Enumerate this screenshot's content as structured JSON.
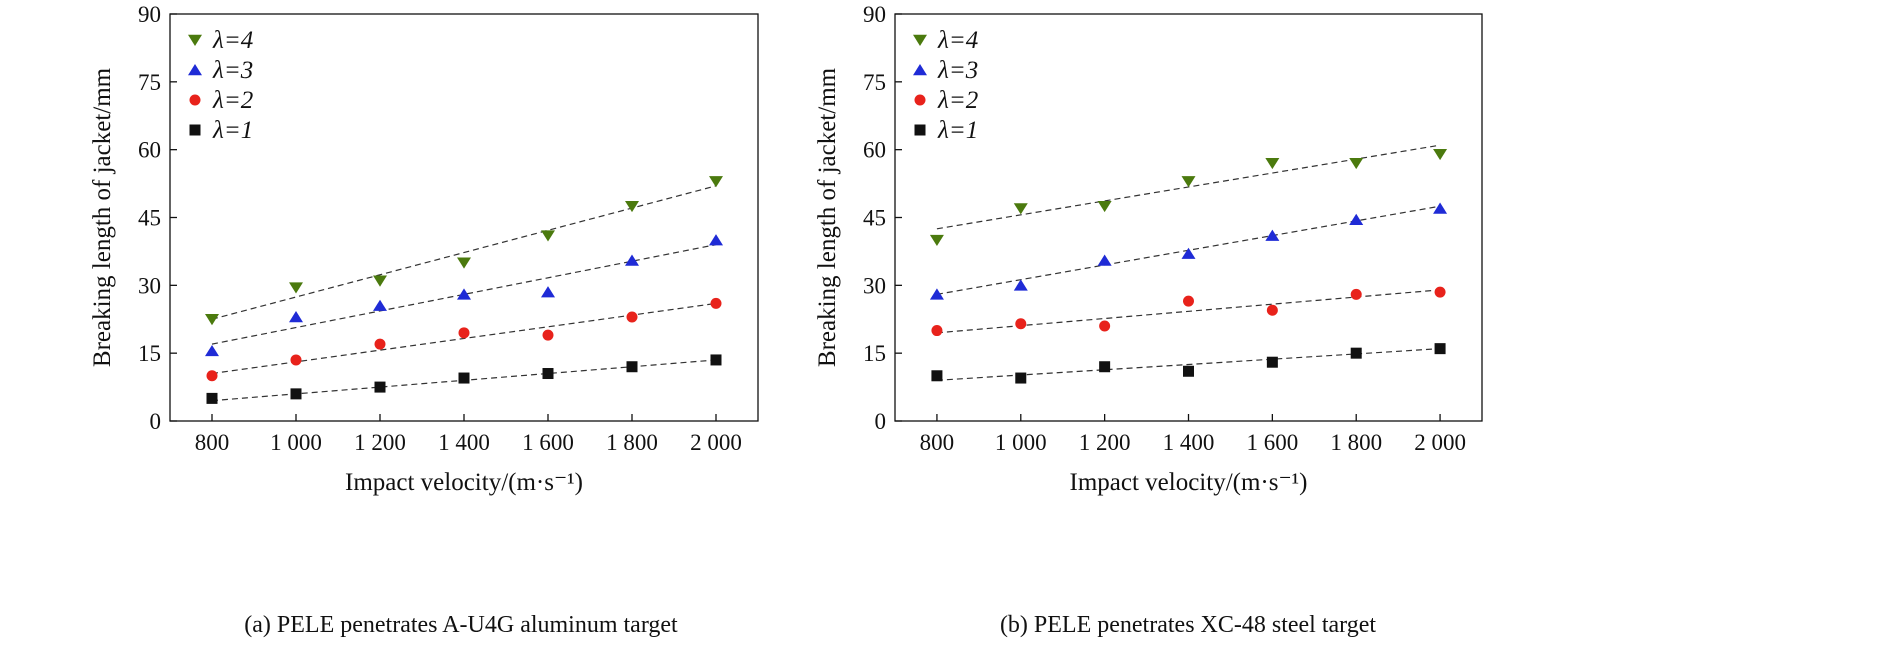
{
  "figure": {
    "panels": [
      {
        "caption": "(a) PELE penetrates A-U4G aluminum target"
      },
      {
        "caption": "(b) PELE penetrates XC-48 steel target"
      }
    ]
  },
  "colors": {
    "λ=4": "#4b7a0e",
    "λ=3": "#1f2bd6",
    "λ=2": "#e8221b",
    "λ=1": "#111111",
    "trendline": "#333333"
  },
  "chart_data": [
    {
      "type": "scatter",
      "caption": "(a) PELE penetrates A-U4G aluminum target",
      "xlabel": "Impact velocity/(m·s⁻¹)",
      "ylabel": "Breaking length of jacket/mm",
      "x_ticks": [
        "800",
        "1 000",
        "1 200",
        "1 400",
        "1 600",
        "1 800",
        "2 000"
      ],
      "y_ticks": [
        "0",
        "15",
        "30",
        "45",
        "60",
        "75",
        "90"
      ],
      "xlim": [
        700,
        2100
      ],
      "ylim": [
        0,
        90
      ],
      "x": [
        800,
        1000,
        1200,
        1400,
        1600,
        1800,
        2000
      ],
      "legend_position": "top-left",
      "trendlines": "linear, dashed",
      "series": [
        {
          "name": "λ=4",
          "marker": "triangle-down",
          "values": [
            22.5,
            29.5,
            31,
            35,
            41,
            47.5,
            53
          ],
          "fit": [
            22.5,
            52
          ]
        },
        {
          "name": "λ=3",
          "marker": "triangle-up",
          "values": [
            15.5,
            23,
            25.5,
            28,
            28.5,
            35.5,
            40
          ],
          "fit": [
            17,
            39
          ]
        },
        {
          "name": "λ=2",
          "marker": "circle",
          "values": [
            10,
            13.5,
            17,
            19.5,
            19,
            23,
            26
          ],
          "fit": [
            10.5,
            26
          ]
        },
        {
          "name": "λ=1",
          "marker": "square",
          "values": [
            5,
            6,
            7.5,
            9.5,
            10.5,
            12,
            13.5
          ],
          "fit": [
            4.5,
            13.5
          ]
        }
      ]
    },
    {
      "type": "scatter",
      "caption": "(b) PELE penetrates XC-48 steel target",
      "xlabel": "Impact velocity/(m·s⁻¹)",
      "ylabel": "Breaking length of jacket/mm",
      "x_ticks": [
        "800",
        "1 000",
        "1 200",
        "1 400",
        "1 600",
        "1 800",
        "2 000"
      ],
      "y_ticks": [
        "0",
        "15",
        "30",
        "45",
        "60",
        "75",
        "90"
      ],
      "xlim": [
        700,
        2100
      ],
      "ylim": [
        0,
        90
      ],
      "x": [
        800,
        1000,
        1200,
        1400,
        1600,
        1800,
        2000
      ],
      "legend_position": "top-left",
      "trendlines": "linear, dashed",
      "series": [
        {
          "name": "λ=4",
          "marker": "triangle-down",
          "values": [
            40,
            47,
            47.5,
            53,
            57,
            57,
            59
          ],
          "fit": [
            42.5,
            61
          ]
        },
        {
          "name": "λ=3",
          "marker": "triangle-up",
          "values": [
            28,
            30,
            35.5,
            37,
            41,
            44.5,
            47
          ],
          "fit": [
            28,
            47.5
          ]
        },
        {
          "name": "λ=2",
          "marker": "circle",
          "values": [
            20,
            21.5,
            21,
            26.5,
            24.5,
            28,
            28.5
          ],
          "fit": [
            19.5,
            29
          ]
        },
        {
          "name": "λ=1",
          "marker": "square",
          "values": [
            10,
            9.5,
            12,
            11,
            13,
            15,
            16
          ],
          "fit": [
            9,
            16
          ]
        }
      ]
    }
  ]
}
